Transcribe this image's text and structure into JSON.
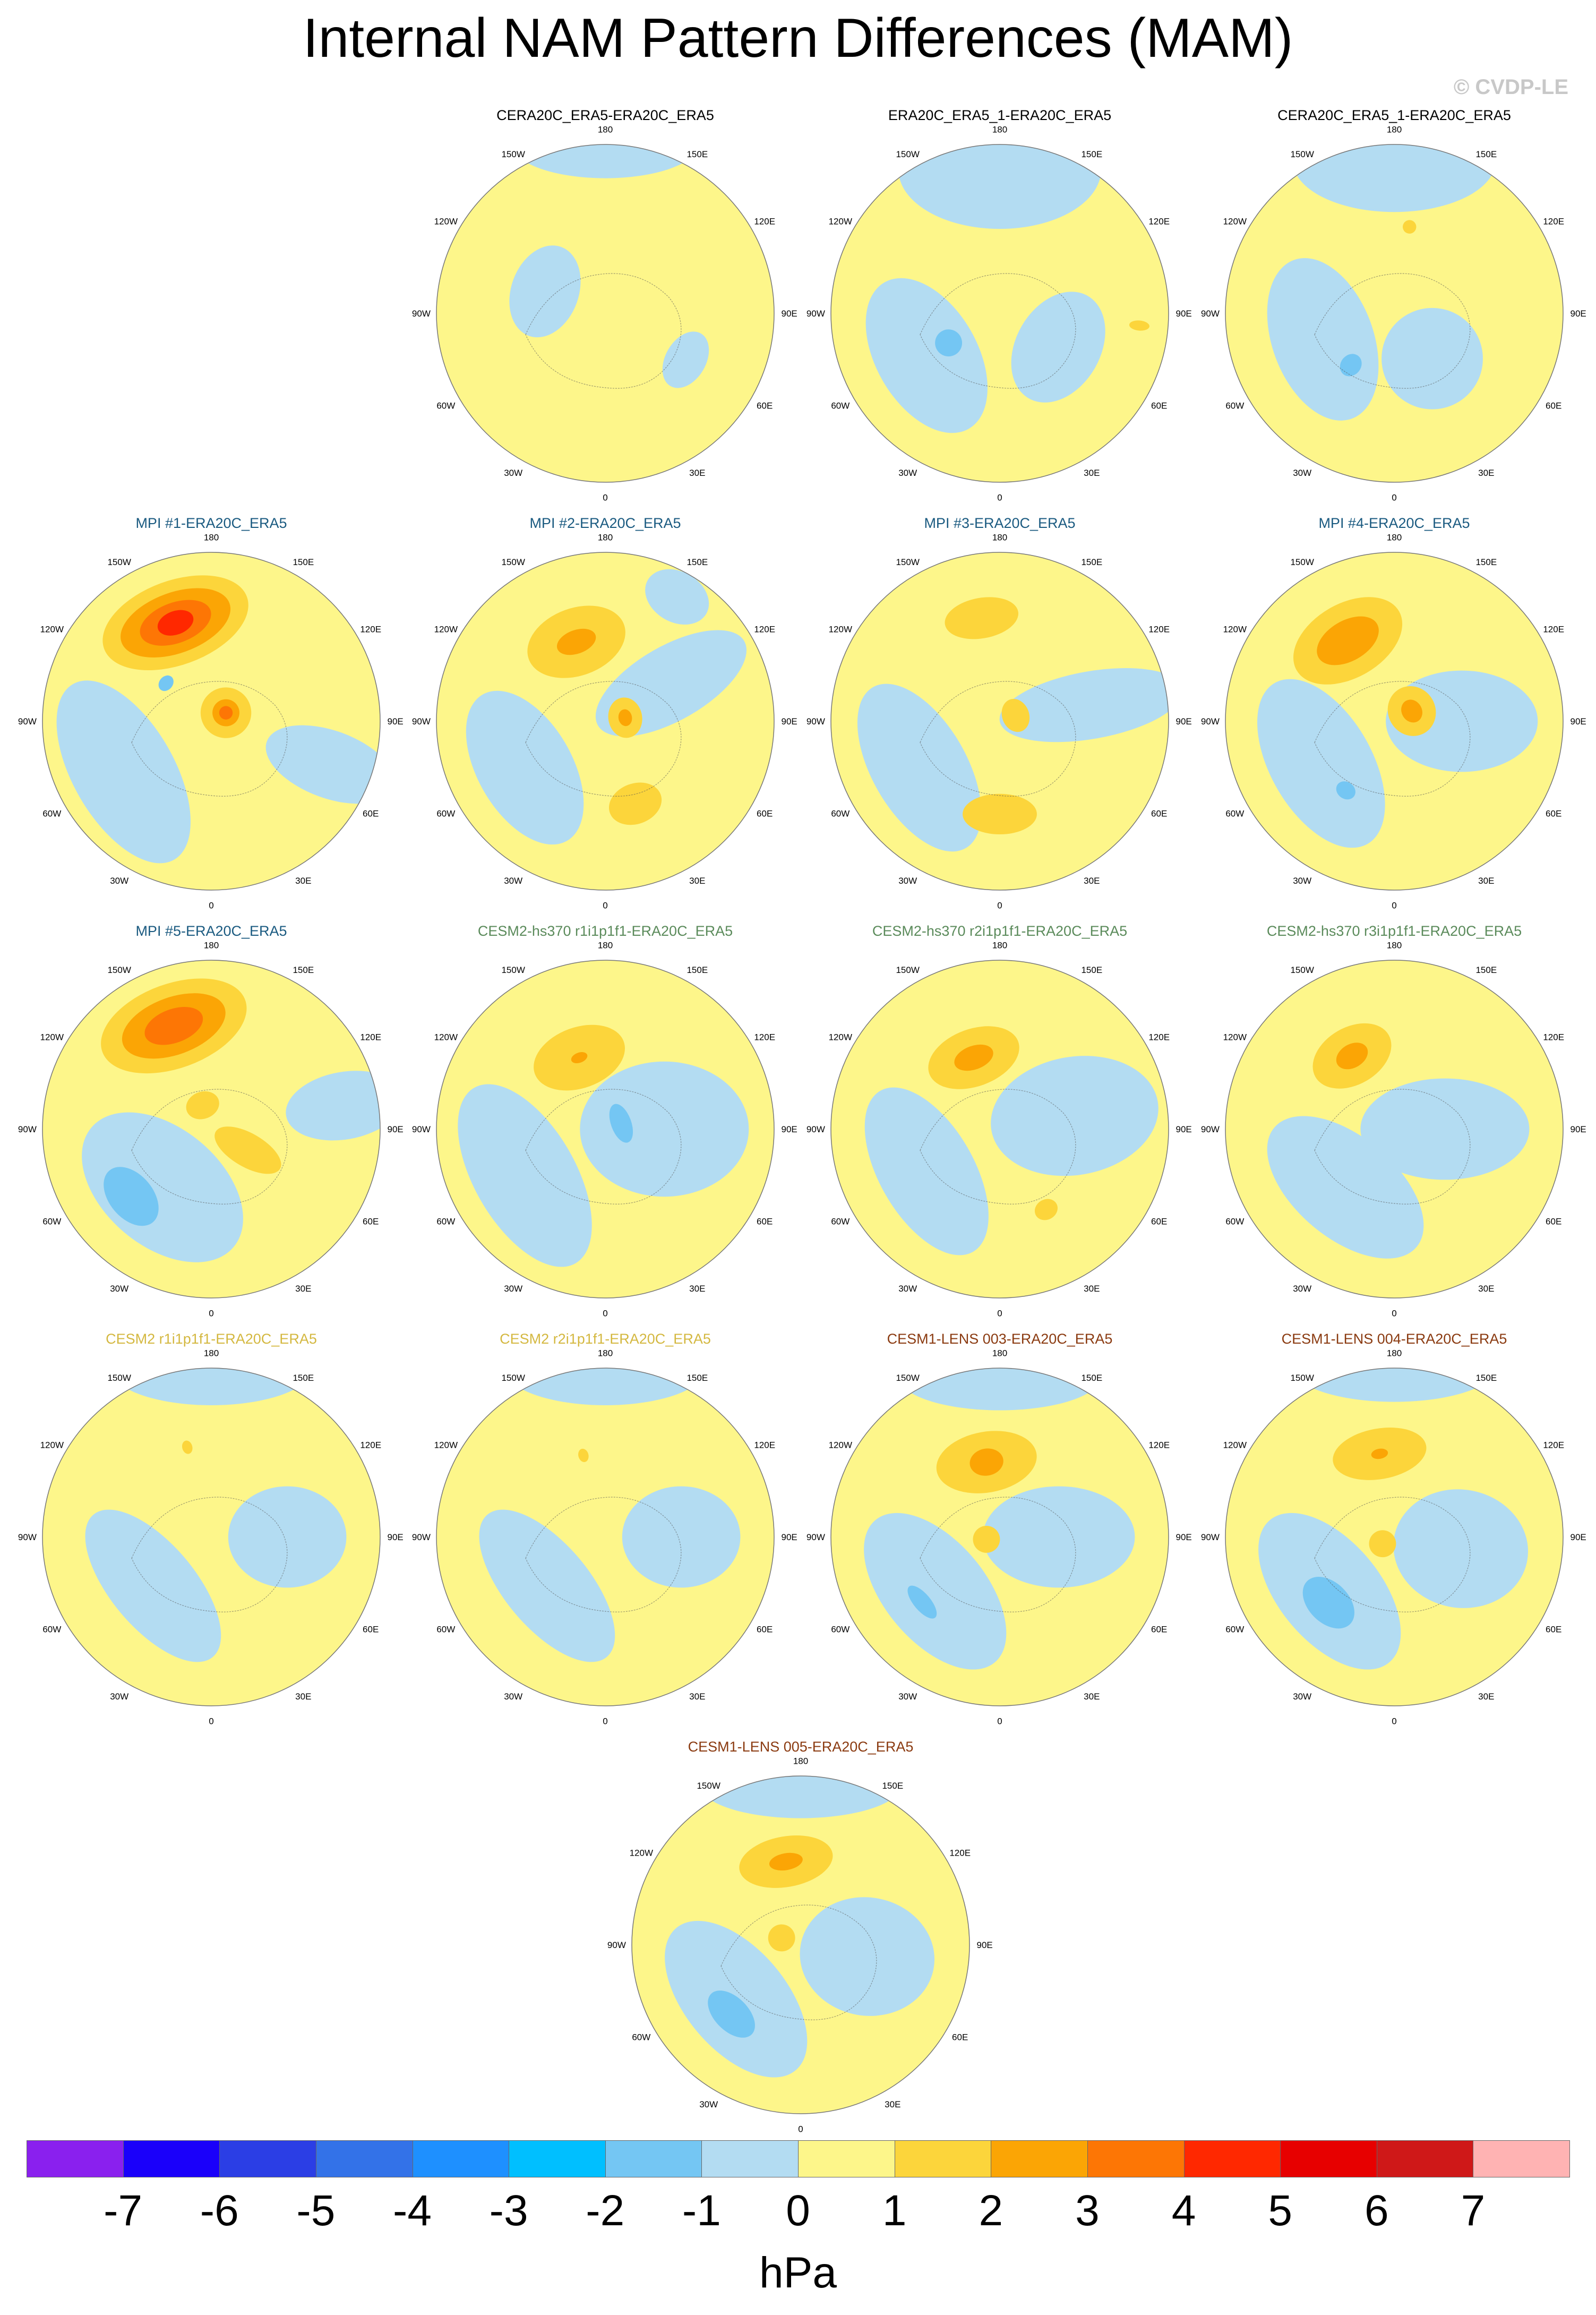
{
  "title": "Internal NAM Pattern Differences (MAM)",
  "watermark": "© CVDP-LE",
  "units": "hPa",
  "lon_labels": [
    "180",
    "150E",
    "120E",
    "90E",
    "60E",
    "30E",
    "0",
    "30W",
    "60W",
    "90W",
    "120W",
    "150W"
  ],
  "colors": {
    "neg1": "#b3dcf2",
    "pos1": "#fdf68a",
    "pos2": "#fcd53b",
    "pos3": "#fba505",
    "pos4": "#fd7605",
    "pos5": "#ff2800",
    "neg2": "#74c6f3",
    "neg3": "#1aa8ff"
  },
  "colorbar": {
    "colors": [
      "#8a20ee",
      "#1a00fa",
      "#2b3ee5",
      "#3372e8",
      "#1e90ff",
      "#00bfff",
      "#74c6f3",
      "#b3dcf2",
      "#fdf68a",
      "#fcd53b",
      "#fba505",
      "#fd7605",
      "#ff2800",
      "#e70000",
      "#cf1818",
      "#ffb3b3"
    ],
    "ticks": [
      "-7",
      "-6",
      "-5",
      "-4",
      "-3",
      "-2",
      "-1",
      "0",
      "1",
      "2",
      "3",
      "4",
      "5",
      "6",
      "7"
    ]
  },
  "panels": [
    {
      "title": "CERA20C_ERA5-ERA20C_ERA5",
      "color": "#000000",
      "blobs": [
        {
          "c": "neg1",
          "lon": 180,
          "r": 1.0,
          "rx": 0.55,
          "ry": 0.2
        },
        {
          "c": "neg1",
          "lon": 250,
          "r": 0.38,
          "rx": 0.28,
          "ry": 0.2
        },
        {
          "c": "neg1",
          "lon": 60,
          "r": 0.55,
          "rx": 0.18,
          "ry": 0.12
        }
      ]
    },
    {
      "title": "ERA20C_ERA5_1-ERA20C_ERA5",
      "color": "#000000",
      "blobs": [
        {
          "c": "neg1",
          "lon": 180,
          "r": 0.85,
          "rx": 0.6,
          "ry": 0.35
        },
        {
          "c": "neg1",
          "lon": 300,
          "r": 0.5,
          "rx": 0.5,
          "ry": 0.3
        },
        {
          "c": "neg1",
          "lon": 60,
          "r": 0.4,
          "rx": 0.35,
          "ry": 0.25
        },
        {
          "c": "neg2",
          "lon": 300,
          "r": 0.35,
          "rx": 0.08,
          "ry": 0.08
        },
        {
          "c": "pos2",
          "lon": 85,
          "r": 0.83,
          "rx": 0.03,
          "ry": 0.06
        }
      ]
    },
    {
      "title": "CERA20C_ERA5_1-ERA20C_ERA5",
      "color": "#000000",
      "blobs": [
        {
          "c": "neg1",
          "lon": 180,
          "r": 0.9,
          "rx": 0.6,
          "ry": 0.3
        },
        {
          "c": "neg1",
          "lon": 290,
          "r": 0.45,
          "rx": 0.5,
          "ry": 0.3
        },
        {
          "c": "neg1",
          "lon": 40,
          "r": 0.35,
          "rx": 0.3,
          "ry": 0.3
        },
        {
          "c": "neg2",
          "lon": 320,
          "r": 0.4,
          "rx": 0.06,
          "ry": 0.07
        },
        {
          "c": "pos2",
          "lon": 170,
          "r": 0.52,
          "rx": 0.04,
          "ry": 0.04
        }
      ]
    },
    {
      "title": "MPI #1-ERA20C_ERA5",
      "color": "#1a5a80",
      "blobs": [
        {
          "c": "neg1",
          "lon": 300,
          "r": 0.6,
          "rx": 0.6,
          "ry": 0.3
        },
        {
          "c": "neg1",
          "lon": 70,
          "r": 0.75,
          "rx": 0.2,
          "ry": 0.4
        },
        {
          "c": "pos2",
          "lon": 200,
          "r": 0.62,
          "rx": 0.45,
          "ry": 0.25
        },
        {
          "c": "pos3",
          "lon": 200,
          "r": 0.62,
          "rx": 0.34,
          "ry": 0.18
        },
        {
          "c": "pos4",
          "lon": 200,
          "r": 0.62,
          "rx": 0.22,
          "ry": 0.12
        },
        {
          "c": "pos5",
          "lon": 200,
          "r": 0.62,
          "rx": 0.11,
          "ry": 0.07
        },
        {
          "c": "pos2",
          "lon": 120,
          "r": 0.1,
          "rx": 0.15,
          "ry": 0.15
        },
        {
          "c": "pos3",
          "lon": 120,
          "r": 0.1,
          "rx": 0.08,
          "ry": 0.08
        },
        {
          "c": "pos4",
          "lon": 120,
          "r": 0.1,
          "rx": 0.04,
          "ry": 0.04
        },
        {
          "c": "neg2",
          "lon": 230,
          "r": 0.35,
          "rx": 0.05,
          "ry": 0.04
        }
      ]
    },
    {
      "title": "MPI #2-ERA20C_ERA5",
      "color": "#1a5a80",
      "blobs": [
        {
          "c": "neg1",
          "lon": 300,
          "r": 0.55,
          "rx": 0.5,
          "ry": 0.28
        },
        {
          "c": "neg1",
          "lon": 120,
          "r": 0.45,
          "rx": 0.22,
          "ry": 0.5
        },
        {
          "c": "neg1",
          "lon": 150,
          "r": 0.85,
          "rx": 0.2,
          "ry": 0.15
        },
        {
          "c": "pos2",
          "lon": 200,
          "r": 0.5,
          "rx": 0.3,
          "ry": 0.2
        },
        {
          "c": "pos3",
          "lon": 200,
          "r": 0.5,
          "rx": 0.12,
          "ry": 0.07
        },
        {
          "c": "pos2",
          "lon": 100,
          "r": 0.12,
          "rx": 0.12,
          "ry": 0.1
        },
        {
          "c": "pos3",
          "lon": 100,
          "r": 0.12,
          "rx": 0.05,
          "ry": 0.04
        },
        {
          "c": "pos2",
          "lon": 20,
          "r": 0.52,
          "rx": 0.16,
          "ry": 0.12
        }
      ]
    },
    {
      "title": "MPI #3-ERA20C_ERA5",
      "color": "#1a5a80",
      "blobs": [
        {
          "c": "neg1",
          "lon": 300,
          "r": 0.55,
          "rx": 0.55,
          "ry": 0.28
        },
        {
          "c": "neg1",
          "lon": 100,
          "r": 0.55,
          "rx": 0.2,
          "ry": 0.55
        },
        {
          "c": "pos2",
          "lon": 190,
          "r": 0.62,
          "rx": 0.22,
          "ry": 0.12
        },
        {
          "c": "pos2",
          "lon": 110,
          "r": 0.1,
          "rx": 0.1,
          "ry": 0.08
        },
        {
          "c": "pos2",
          "lon": 0,
          "r": 0.55,
          "rx": 0.22,
          "ry": 0.12
        }
      ]
    },
    {
      "title": "MPI #4-ERA20C_ERA5",
      "color": "#1a5a80",
      "blobs": [
        {
          "c": "neg1",
          "lon": 300,
          "r": 0.5,
          "rx": 0.55,
          "ry": 0.3
        },
        {
          "c": "neg1",
          "lon": 90,
          "r": 0.4,
          "rx": 0.3,
          "ry": 0.45
        },
        {
          "c": "pos2",
          "lon": 210,
          "r": 0.55,
          "rx": 0.35,
          "ry": 0.22
        },
        {
          "c": "pos3",
          "lon": 210,
          "r": 0.55,
          "rx": 0.2,
          "ry": 0.12
        },
        {
          "c": "pos2",
          "lon": 120,
          "r": 0.12,
          "rx": 0.15,
          "ry": 0.14
        },
        {
          "c": "pos3",
          "lon": 120,
          "r": 0.12,
          "rx": 0.07,
          "ry": 0.06
        },
        {
          "c": "neg2",
          "lon": 325,
          "r": 0.5,
          "rx": 0.06,
          "ry": 0.05
        }
      ]
    },
    {
      "title": "MPI #5-ERA20C_ERA5",
      "color": "#1a5a80",
      "blobs": [
        {
          "c": "neg1",
          "lon": 320,
          "r": 0.45,
          "rx": 0.55,
          "ry": 0.35
        },
        {
          "c": "neg1",
          "lon": 100,
          "r": 0.8,
          "rx": 0.2,
          "ry": 0.35
        },
        {
          "c": "neg2",
          "lon": 310,
          "r": 0.62,
          "rx": 0.2,
          "ry": 0.13
        },
        {
          "c": "pos2",
          "lon": 200,
          "r": 0.65,
          "rx": 0.45,
          "ry": 0.25
        },
        {
          "c": "pos3",
          "lon": 200,
          "r": 0.65,
          "rx": 0.32,
          "ry": 0.17
        },
        {
          "c": "pos4",
          "lon": 200,
          "r": 0.65,
          "rx": 0.18,
          "ry": 0.1
        },
        {
          "c": "pos2",
          "lon": 60,
          "r": 0.25,
          "rx": 0.1,
          "ry": 0.22
        },
        {
          "c": "pos2",
          "lon": 200,
          "r": 0.15,
          "rx": 0.1,
          "ry": 0.08
        }
      ]
    },
    {
      "title": "CESM2-hs370 r1i1p1f1-ERA20C_ERA5",
      "color": "#5a8a5a",
      "blobs": [
        {
          "c": "neg1",
          "lon": 300,
          "r": 0.55,
          "rx": 0.6,
          "ry": 0.3
        },
        {
          "c": "neg1",
          "lon": 90,
          "r": 0.35,
          "rx": 0.4,
          "ry": 0.5
        },
        {
          "c": "neg2",
          "lon": 110,
          "r": 0.1,
          "rx": 0.12,
          "ry": 0.06
        },
        {
          "c": "pos2",
          "lon": 200,
          "r": 0.45,
          "rx": 0.28,
          "ry": 0.18
        },
        {
          "c": "pos3",
          "lon": 200,
          "r": 0.45,
          "rx": 0.05,
          "ry": 0.03
        }
      ]
    },
    {
      "title": "CESM2-hs370 r2i1p1f1-ERA20C_ERA5",
      "color": "#5a8a5a",
      "blobs": [
        {
          "c": "neg1",
          "lon": 300,
          "r": 0.5,
          "rx": 0.55,
          "ry": 0.28
        },
        {
          "c": "neg1",
          "lon": 100,
          "r": 0.45,
          "rx": 0.35,
          "ry": 0.5
        },
        {
          "c": "pos2",
          "lon": 200,
          "r": 0.45,
          "rx": 0.28,
          "ry": 0.17
        },
        {
          "c": "pos3",
          "lon": 200,
          "r": 0.45,
          "rx": 0.12,
          "ry": 0.07
        },
        {
          "c": "pos2",
          "lon": 30,
          "r": 0.55,
          "rx": 0.07,
          "ry": 0.06
        }
      ]
    },
    {
      "title": "CESM2-hs370 r3i1p1f1-ERA20C_ERA5",
      "color": "#5a8a5a",
      "blobs": [
        {
          "c": "neg1",
          "lon": 320,
          "r": 0.45,
          "rx": 0.55,
          "ry": 0.3
        },
        {
          "c": "neg1",
          "lon": 90,
          "r": 0.3,
          "rx": 0.3,
          "ry": 0.5
        },
        {
          "c": "pos2",
          "lon": 210,
          "r": 0.5,
          "rx": 0.25,
          "ry": 0.17
        },
        {
          "c": "pos3",
          "lon": 210,
          "r": 0.5,
          "rx": 0.1,
          "ry": 0.07
        }
      ]
    },
    {
      "title": "CESM2 r1i1p1f1-ERA20C_ERA5",
      "color": "#d4b840",
      "blobs": [
        {
          "c": "neg1",
          "lon": 180,
          "r": 1.0,
          "rx": 0.6,
          "ry": 0.22
        },
        {
          "c": "neg1",
          "lon": 310,
          "r": 0.45,
          "rx": 0.55,
          "ry": 0.25
        },
        {
          "c": "neg1",
          "lon": 90,
          "r": 0.45,
          "rx": 0.3,
          "ry": 0.35
        },
        {
          "c": "pos2",
          "lon": 195,
          "r": 0.55,
          "rx": 0.03,
          "ry": 0.04
        }
      ]
    },
    {
      "title": "CESM2 r2i1p1f1-ERA20C_ERA5",
      "color": "#d4b840",
      "blobs": [
        {
          "c": "neg1",
          "lon": 180,
          "r": 1.0,
          "rx": 0.6,
          "ry": 0.22
        },
        {
          "c": "neg1",
          "lon": 310,
          "r": 0.45,
          "rx": 0.55,
          "ry": 0.25
        },
        {
          "c": "neg1",
          "lon": 90,
          "r": 0.45,
          "rx": 0.3,
          "ry": 0.35
        },
        {
          "c": "pos2",
          "lon": 195,
          "r": 0.5,
          "rx": 0.03,
          "ry": 0.04
        }
      ]
    },
    {
      "title": "CESM1-LENS 003-ERA20C_ERA5",
      "color": "#8a3a10",
      "blobs": [
        {
          "c": "neg1",
          "lon": 180,
          "r": 0.95,
          "rx": 0.6,
          "ry": 0.2
        },
        {
          "c": "neg1",
          "lon": 310,
          "r": 0.5,
          "rx": 0.55,
          "ry": 0.3
        },
        {
          "c": "neg1",
          "lon": 90,
          "r": 0.35,
          "rx": 0.3,
          "ry": 0.45
        },
        {
          "c": "neg2",
          "lon": 310,
          "r": 0.6,
          "rx": 0.12,
          "ry": 0.05
        },
        {
          "c": "pos2",
          "lon": 190,
          "r": 0.45,
          "rx": 0.3,
          "ry": 0.18
        },
        {
          "c": "pos3",
          "lon": 190,
          "r": 0.45,
          "rx": 0.1,
          "ry": 0.08
        },
        {
          "c": "pos2",
          "lon": 280,
          "r": 0.08,
          "rx": 0.08,
          "ry": 0.08
        }
      ]
    },
    {
      "title": "CESM1-LENS 004-ERA20C_ERA5",
      "color": "#8a3a10",
      "blobs": [
        {
          "c": "neg1",
          "lon": 180,
          "r": 1.0,
          "rx": 0.6,
          "ry": 0.2
        },
        {
          "c": "neg1",
          "lon": 310,
          "r": 0.5,
          "rx": 0.55,
          "ry": 0.3
        },
        {
          "c": "neg1",
          "lon": 80,
          "r": 0.4,
          "rx": 0.35,
          "ry": 0.4
        },
        {
          "c": "neg2",
          "lon": 315,
          "r": 0.55,
          "rx": 0.18,
          "ry": 0.12
        },
        {
          "c": "pos2",
          "lon": 190,
          "r": 0.5,
          "rx": 0.28,
          "ry": 0.15
        },
        {
          "c": "pos3",
          "lon": 190,
          "r": 0.5,
          "rx": 0.05,
          "ry": 0.03
        },
        {
          "c": "pos2",
          "lon": 300,
          "r": 0.08,
          "rx": 0.08,
          "ry": 0.08
        }
      ]
    },
    {
      "title": "CESM1-LENS 005-ERA20C_ERA5",
      "color": "#8a3a10",
      "blobs": [
        {
          "c": "neg1",
          "lon": 180,
          "r": 0.95,
          "rx": 0.6,
          "ry": 0.2
        },
        {
          "c": "neg1",
          "lon": 310,
          "r": 0.5,
          "rx": 0.55,
          "ry": 0.3
        },
        {
          "c": "neg1",
          "lon": 80,
          "r": 0.4,
          "rx": 0.35,
          "ry": 0.4
        },
        {
          "c": "neg2",
          "lon": 315,
          "r": 0.58,
          "rx": 0.17,
          "ry": 0.1
        },
        {
          "c": "pos2",
          "lon": 190,
          "r": 0.5,
          "rx": 0.28,
          "ry": 0.15
        },
        {
          "c": "pos3",
          "lon": 190,
          "r": 0.5,
          "rx": 0.1,
          "ry": 0.05
        },
        {
          "c": "pos2",
          "lon": 250,
          "r": 0.12,
          "rx": 0.08,
          "ry": 0.08
        }
      ]
    }
  ]
}
